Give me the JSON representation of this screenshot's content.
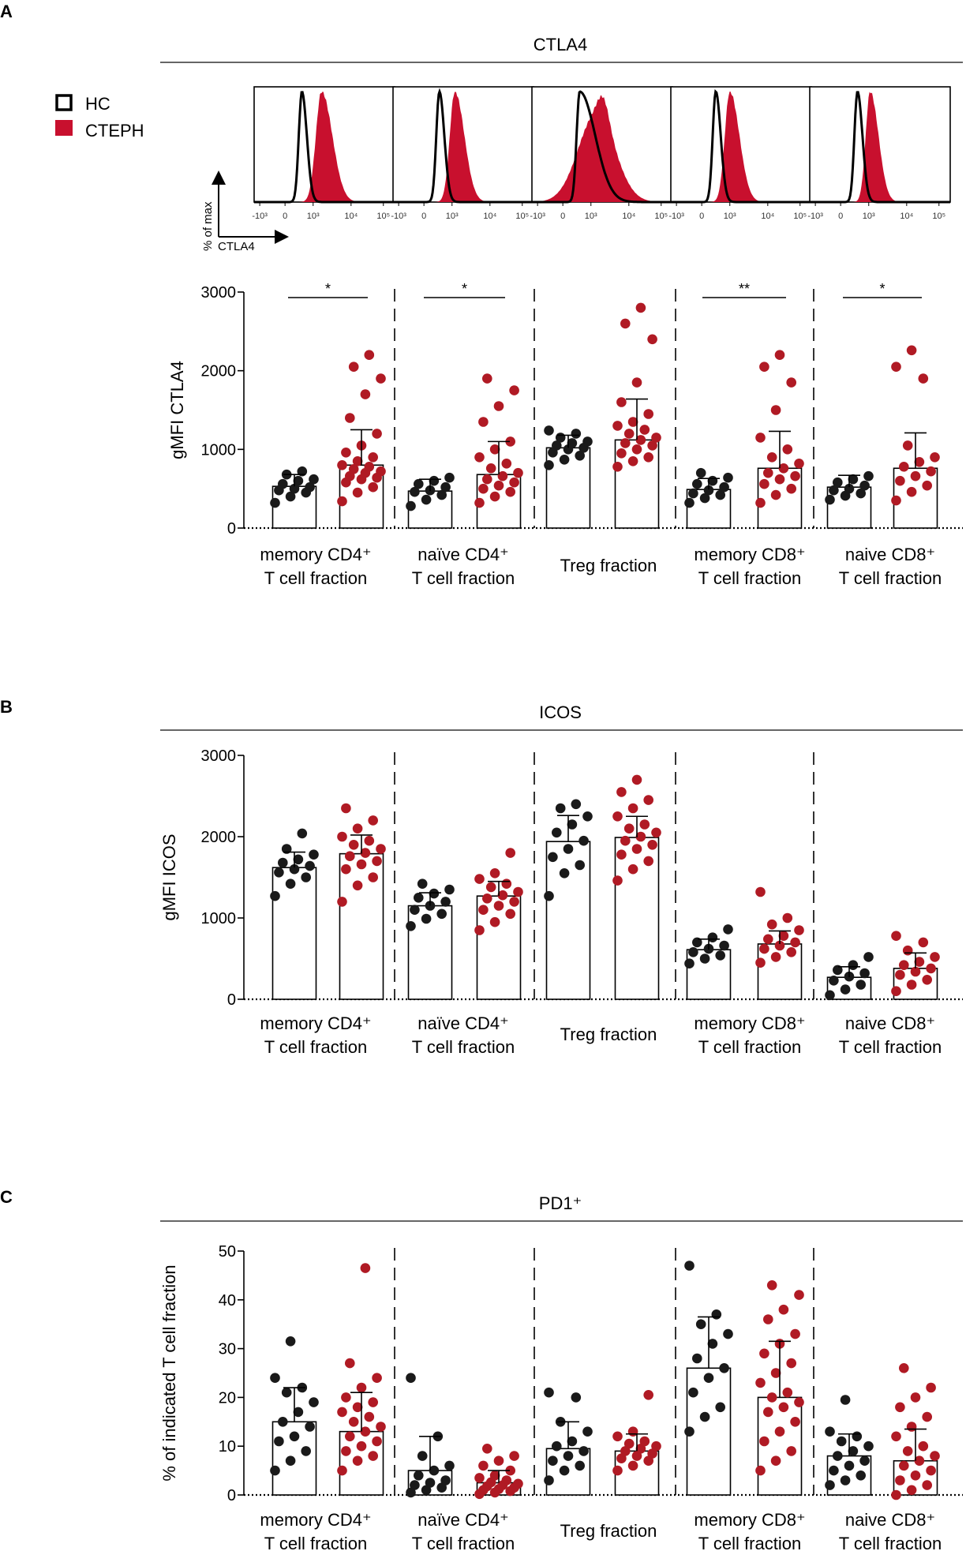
{
  "colors": {
    "hc": "#1a1a1a",
    "cteph": "#b01a24",
    "hist_fill": "#c8102e",
    "axis": "#000000"
  },
  "legend": {
    "hc": "HC",
    "cteph": "CTEPH"
  },
  "categories": [
    [
      "memory CD4⁺",
      "T cell fraction"
    ],
    [
      "naïve CD4⁺",
      "T cell fraction"
    ],
    [
      "Treg fraction"
    ],
    [
      "memory CD8⁺",
      "T cell fraction"
    ],
    [
      "naive CD8⁺",
      "T cell fraction"
    ]
  ],
  "histograms": {
    "x_axis_label": "CTLA4",
    "y_axis_label": "% of max",
    "ticks": [
      "-10³",
      "0",
      "10³",
      "10⁴",
      "10⁵"
    ],
    "peaks": [
      {
        "hc": 0.34,
        "cteph": 0.48,
        "cteph_width": 0.09,
        "cteph_broad": false
      },
      {
        "hc": 0.33,
        "cteph": 0.44,
        "cteph_width": 0.08,
        "cteph_broad": false
      },
      {
        "hc": 0.34,
        "cteph": 0.46,
        "cteph_width": 0.13,
        "cteph_broad": true
      },
      {
        "hc": 0.32,
        "cteph": 0.42,
        "cteph_width": 0.08,
        "cteph_broad": false
      },
      {
        "hc": 0.34,
        "cteph": 0.43,
        "cteph_width": 0.07,
        "cteph_broad": false
      }
    ]
  },
  "panels": {
    "A": {
      "letter": "A",
      "title": "CTLA4"
    },
    "B": {
      "letter": "B",
      "title": "ICOS"
    },
    "C": {
      "letter": "C",
      "title": "PD1⁺"
    }
  },
  "chart_data": [
    {
      "type": "bar",
      "panel": "A",
      "title": "CTLA4",
      "ylabel": "gMFI CTLA4",
      "ylim": [
        0,
        3000
      ],
      "yticks": [
        0,
        1000,
        2000,
        3000
      ],
      "categories": [
        "memory CD4⁺ T cell fraction",
        "naïve CD4⁺ T cell fraction",
        "Treg fraction",
        "memory CD8⁺ T cell fraction",
        "naive CD8⁺ T cell fraction"
      ],
      "series": [
        {
          "name": "HC",
          "values": [
            530,
            470,
            1020,
            490,
            520
          ],
          "errors": [
            150,
            150,
            160,
            140,
            150
          ],
          "points": [
            [
              320,
              400,
              450,
              480,
              500,
              520,
              560,
              600,
              620,
              680,
              720
            ],
            [
              280,
              360,
              420,
              460,
              480,
              520,
              560,
              600,
              640
            ],
            [
              800,
              870,
              920,
              960,
              1000,
              1020,
              1050,
              1080,
              1100,
              1150,
              1200,
              1240
            ],
            [
              320,
              380,
              420,
              440,
              480,
              520,
              560,
              600,
              640,
              700
            ],
            [
              360,
              410,
              440,
              480,
              500,
              540,
              580,
              620,
              660
            ]
          ]
        },
        {
          "name": "CTEPH",
          "values": [
            800,
            680,
            1120,
            760,
            760
          ],
          "errors": [
            450,
            420,
            520,
            470,
            450
          ],
          "points": [
            [
              340,
              450,
              520,
              580,
              620,
              640,
              660,
              700,
              720,
              750,
              780,
              800,
              850,
              900,
              960,
              1050,
              1200,
              1400,
              1700,
              1900,
              2050,
              2200
            ],
            [
              320,
              400,
              460,
              500,
              540,
              580,
              620,
              660,
              700,
              760,
              820,
              900,
              1000,
              1100,
              1350,
              1550,
              1750,
              1900
            ],
            [
              780,
              850,
              900,
              950,
              1000,
              1050,
              1080,
              1120,
              1150,
              1200,
              1250,
              1300,
              1350,
              1450,
              1600,
              1850,
              2400,
              2600,
              2800
            ],
            [
              320,
              420,
              500,
              560,
              620,
              660,
              700,
              760,
              820,
              900,
              1000,
              1150,
              1500,
              1850,
              2050,
              2200
            ],
            [
              350,
              460,
              540,
              600,
              660,
              720,
              780,
              840,
              900,
              1050,
              1900,
              2050,
              2260
            ]
          ]
        }
      ],
      "significance": [
        "*",
        "*",
        "",
        "**",
        "*"
      ]
    },
    {
      "type": "bar",
      "panel": "B",
      "title": "ICOS",
      "ylabel": "gMFI ICOS",
      "ylim": [
        0,
        3000
      ],
      "yticks": [
        0,
        1000,
        2000,
        3000
      ],
      "categories": [
        "memory CD4⁺ T cell fraction",
        "naïve CD4⁺ T cell fraction",
        "Treg fraction",
        "memory CD8⁺ T cell fraction",
        "naive CD8⁺ T cell fraction"
      ],
      "series": [
        {
          "name": "HC",
          "values": [
            1620,
            1150,
            1940,
            610,
            270
          ],
          "errors": [
            190,
            160,
            320,
            130,
            130
          ],
          "points": [
            [
              1270,
              1420,
              1500,
              1560,
              1600,
              1640,
              1680,
              1720,
              1780,
              1850,
              2040
            ],
            [
              900,
              990,
              1050,
              1100,
              1150,
              1200,
              1250,
              1300,
              1350,
              1420
            ],
            [
              1270,
              1550,
              1650,
              1750,
              1850,
              1950,
              2050,
              2150,
              2250,
              2350,
              2400
            ],
            [
              440,
              500,
              540,
              580,
              620,
              660,
              700,
              760,
              860
            ],
            [
              50,
              120,
              180,
              230,
              280,
              320,
              360,
              420,
              520
            ]
          ]
        },
        {
          "name": "CTEPH",
          "values": [
            1790,
            1270,
            1990,
            680,
            380
          ],
          "errors": [
            230,
            180,
            260,
            160,
            190
          ],
          "points": [
            [
              1200,
              1400,
              1500,
              1600,
              1660,
              1700,
              1760,
              1800,
              1850,
              1900,
              1950,
              2000,
              2100,
              2200,
              2350
            ],
            [
              850,
              950,
              1050,
              1100,
              1150,
              1200,
              1240,
              1280,
              1320,
              1380,
              1420,
              1480,
              1550,
              1800
            ],
            [
              1460,
              1600,
              1700,
              1780,
              1850,
              1900,
              1950,
              2000,
              2050,
              2100,
              2150,
              2250,
              2350,
              2450,
              2550,
              2700
            ],
            [
              450,
              520,
              580,
              620,
              660,
              700,
              740,
              780,
              850,
              920,
              1000,
              1320
            ],
            [
              100,
              180,
              240,
              300,
              340,
              380,
              420,
              460,
              520,
              600,
              700,
              780
            ]
          ]
        }
      ],
      "significance": [
        "",
        "",
        "",
        "",
        ""
      ]
    },
    {
      "type": "bar",
      "panel": "C",
      "title": "PD1⁺",
      "ylabel": "% of indicated T cell fraction",
      "ylim": [
        0,
        50
      ],
      "yticks": [
        0,
        10,
        20,
        30,
        40,
        50
      ],
      "categories": [
        "memory CD4⁺ T cell fraction",
        "naïve CD4⁺ T cell fraction",
        "Treg fraction",
        "memory CD8⁺ T cell fraction",
        "naive CD8⁺ T cell fraction"
      ],
      "series": [
        {
          "name": "HC",
          "values": [
            15,
            5,
            9.5,
            26,
            8
          ],
          "errors": [
            7,
            7,
            5.5,
            10.5,
            4.5
          ],
          "points": [
            [
              5,
              7,
              9,
              11,
              12,
              14,
              15,
              17,
              19,
              21,
              22,
              24,
              31.5
            ],
            [
              0.5,
              1,
              1.5,
              2,
              2.5,
              3,
              4,
              5,
              6,
              8,
              12,
              24
            ],
            [
              3,
              5,
              6,
              7,
              8,
              9,
              10,
              11,
              13,
              15,
              20,
              21
            ],
            [
              13,
              16,
              18,
              21,
              24,
              26,
              28,
              31,
              33,
              35,
              37,
              47
            ],
            [
              2,
              3,
              4,
              5,
              6,
              7,
              8,
              9,
              10,
              11,
              12,
              13,
              19.5
            ]
          ]
        },
        {
          "name": "CTEPH",
          "values": [
            13,
            2.5,
            9,
            20,
            7
          ],
          "errors": [
            8,
            2.5,
            3.5,
            11.5,
            6.5
          ],
          "points": [
            [
              5,
              7,
              8,
              9,
              10,
              11,
              12,
              13,
              14,
              15,
              16,
              17,
              18,
              19,
              20,
              22,
              24,
              27,
              46.5
            ],
            [
              0.2,
              0.5,
              0.8,
              1,
              1.2,
              1.5,
              1.8,
              2,
              2.3,
              2.6,
              3,
              3.5,
              4,
              5,
              6,
              7,
              8,
              9.5
            ],
            [
              5,
              6,
              7,
              7.5,
              8,
              8.5,
              9,
              9.5,
              10,
              10.5,
              11,
              12,
              13,
              20.5
            ],
            [
              5,
              7,
              9,
              11,
              13,
              15,
              17,
              18,
              19,
              20,
              21,
              23,
              25,
              27,
              29,
              31,
              33,
              36,
              38,
              41,
              43
            ],
            [
              0,
              1,
              2,
              3,
              4,
              5,
              6,
              7,
              8,
              9,
              10,
              12,
              14,
              16,
              18,
              20,
              22,
              26
            ]
          ]
        }
      ],
      "significance": [
        "",
        "",
        "",
        "",
        ""
      ]
    }
  ]
}
